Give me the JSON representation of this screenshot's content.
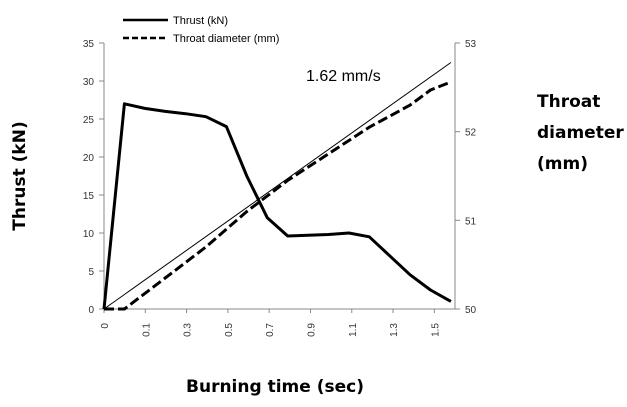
{
  "chart_data": {
    "type": "line",
    "legend": {
      "placement": "top-left",
      "entries": [
        "Thrust (kN)",
        "Throat diameter (mm)"
      ]
    },
    "xlabel": "Burning time (sec)",
    "ylabel": "Thrust (kN)",
    "y2label": [
      "Throat",
      "diameter",
      "(mm)"
    ],
    "xlim": [
      0,
      1.6
    ],
    "ylim": [
      0,
      35
    ],
    "y2lim": [
      50,
      53
    ],
    "x_tick_labels": [
      "0",
      "0.1",
      "0.3",
      "0.5",
      "0.7",
      "0.9",
      "1.1",
      "1.3",
      "1.5"
    ],
    "y_ticks": [
      0,
      5,
      10,
      15,
      20,
      25,
      30,
      35
    ],
    "y2_ticks": [
      50,
      51,
      52,
      53
    ],
    "grid": false,
    "annotation": "1.62 mm/s",
    "series": [
      {
        "name": "Thrust (kN)",
        "axis": "left",
        "style": "solid",
        "points": [
          [
            0,
            0
          ],
          [
            0.1,
            27
          ],
          [
            0.2,
            26.4
          ],
          [
            0.3,
            26
          ],
          [
            0.4,
            25.7
          ],
          [
            0.5,
            25.3
          ],
          [
            0.6,
            24
          ],
          [
            0.7,
            17.5
          ],
          [
            0.8,
            12
          ],
          [
            0.9,
            9.6
          ],
          [
            1.0,
            9.7
          ],
          [
            1.1,
            9.8
          ],
          [
            1.2,
            10
          ],
          [
            1.3,
            9.5
          ],
          [
            1.4,
            7
          ],
          [
            1.5,
            4.5
          ],
          [
            1.6,
            2.5
          ],
          [
            1.7,
            1
          ]
        ]
      },
      {
        "name": "Throat diameter (mm)",
        "axis": "right",
        "style": "dashed",
        "points": [
          [
            0,
            50
          ],
          [
            0.1,
            50
          ],
          [
            0.3,
            50.35
          ],
          [
            0.5,
            50.7
          ],
          [
            0.7,
            51.1
          ],
          [
            0.9,
            51.45
          ],
          [
            1.1,
            51.75
          ],
          [
            1.3,
            52.05
          ],
          [
            1.5,
            52.3
          ],
          [
            1.6,
            52.47
          ],
          [
            1.7,
            52.56
          ]
        ]
      },
      {
        "axis": "right",
        "style": "thin",
        "points": [
          [
            0,
            50
          ],
          [
            1.7,
            52.78
          ]
        ]
      }
    ]
  }
}
